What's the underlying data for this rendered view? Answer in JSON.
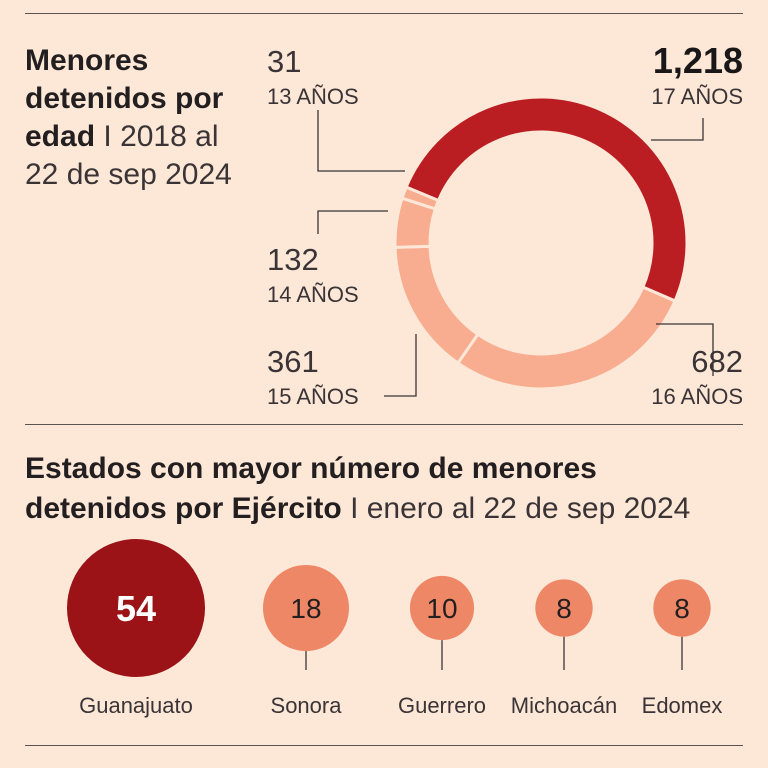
{
  "header": {
    "title_bold": "Menores detenidos por edad",
    "separator": "I",
    "title_light": "2018 al 22 de sep 2024"
  },
  "section2": {
    "title_bold": "Estados con mayor número de menores detenidos por Ejército",
    "separator": "I",
    "title_light": "enero al 22 de sep 2024"
  },
  "chart_data": [
    {
      "type": "pie",
      "variant": "donut",
      "title": "Menores detenidos por edad I 2018 al 22 de sep 2024",
      "slices": [
        {
          "value_label": "1,218",
          "category": "17 AÑOS",
          "value": 1218,
          "color": "#bb1e22"
        },
        {
          "value_label": "682",
          "category": "16 AÑOS",
          "value": 682,
          "color": "#f9ad90"
        },
        {
          "value_label": "361",
          "category": "15 AÑOS",
          "value": 361,
          "color": "#f9ad90"
        },
        {
          "value_label": "132",
          "category": "14 AÑOS",
          "value": 132,
          "color": "#f9ad90"
        },
        {
          "value_label": "31",
          "category": "13 AÑOS",
          "value": 31,
          "color": "#f9ad90"
        }
      ]
    },
    {
      "type": "bubble",
      "title": "Estados con mayor número de menores detenidos por Ejército I enero al 22 de sep 2024",
      "points": [
        {
          "label": "Guanajuato",
          "value": 54,
          "color": "#9b1317"
        },
        {
          "label": "Sonora",
          "value": 18,
          "color": "#ee8766"
        },
        {
          "label": "Guerrero",
          "value": 10,
          "color": "#ee8766"
        },
        {
          "label": "Michoacán",
          "value": 8,
          "color": "#ee8766"
        },
        {
          "label": "Edomex",
          "value": 8,
          "color": "#ee8766"
        }
      ]
    }
  ]
}
